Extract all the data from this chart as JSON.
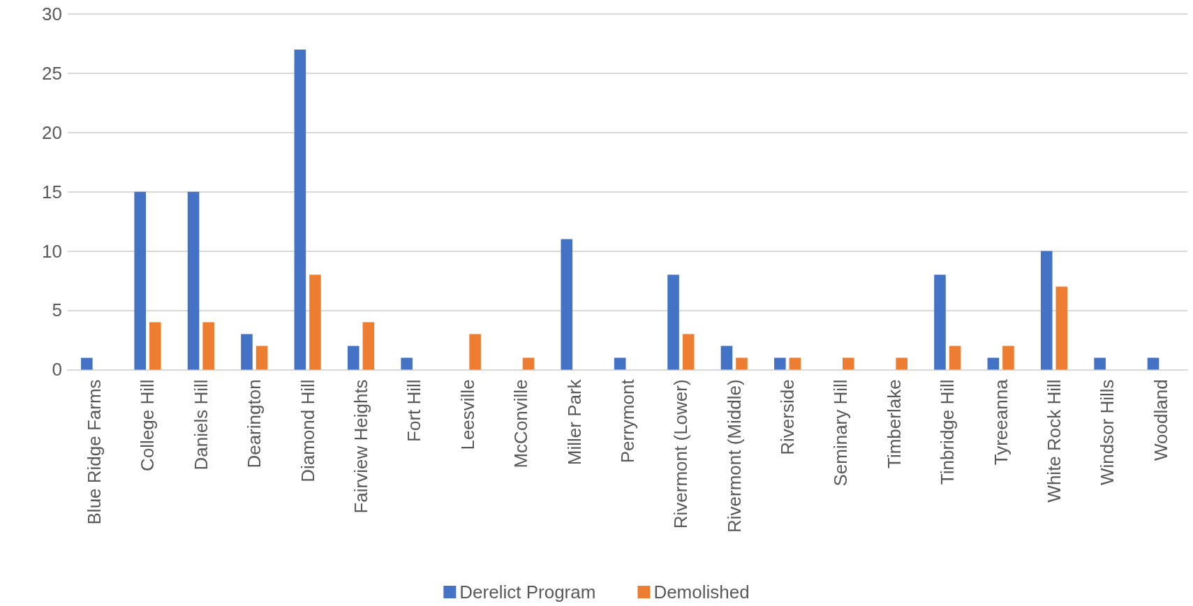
{
  "chart_data": {
    "type": "bar",
    "categories": [
      "Blue Ridge Farms",
      "College Hill",
      "Daniels Hill",
      "Dearington",
      "Diamond Hill",
      "Fairview Heights",
      "Fort Hill",
      "Leesville",
      "McConville",
      "Miller Park",
      "Perrymont",
      "Rivermont (Lower)",
      "Rivermont (Middle)",
      "Riverside",
      "Seminary Hill",
      "Timberlake",
      "Tinbridge Hill",
      "Tyreeanna",
      "White Rock Hill",
      "Windsor Hills",
      "Woodland"
    ],
    "series": [
      {
        "name": "Derelict Program",
        "color": "#4472c4",
        "values": [
          1,
          15,
          15,
          3,
          27,
          2,
          1,
          null,
          null,
          11,
          1,
          8,
          2,
          1,
          null,
          null,
          8,
          1,
          10,
          1,
          1
        ]
      },
      {
        "name": "Demolished",
        "color": "#ed7d31",
        "values": [
          null,
          4,
          4,
          2,
          8,
          4,
          null,
          3,
          1,
          null,
          null,
          3,
          1,
          1,
          1,
          1,
          2,
          2,
          7,
          null,
          null
        ]
      }
    ],
    "ylim": [
      0,
      30
    ],
    "yticks": [
      0,
      5,
      10,
      15,
      20,
      25,
      30
    ],
    "grid": "y",
    "legend": "bottom"
  }
}
